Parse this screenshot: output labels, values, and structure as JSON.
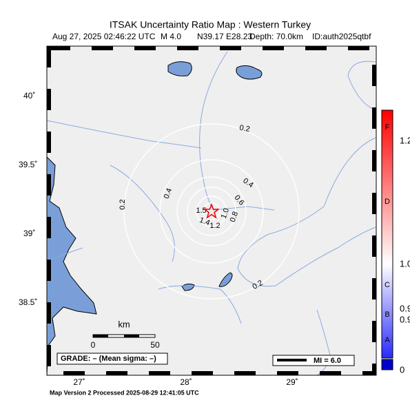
{
  "header": {
    "title": "ITSAK Uncertainty Ratio Map : Western Turkey",
    "event_time": "Aug 27, 2025 02:46:22 UTC",
    "magnitude": "M 4.0",
    "location": "N39.17 E28.23",
    "depth": "Depth: 70.0km",
    "event_id": "ID:auth2025qtbf"
  },
  "map": {
    "lat_labels": [
      "40˚",
      "39.5˚",
      "39˚",
      "38.5˚"
    ],
    "lon_labels": [
      "27˚",
      "28˚",
      "29˚"
    ],
    "contour_labels": [
      "0.2",
      "0.4",
      "0.6",
      "0.8",
      "1.0",
      "1.2",
      "1.4",
      "1.5",
      "0.4",
      "0.2",
      "0.2"
    ]
  },
  "colorbar": {
    "grades": [
      "F",
      "D",
      "C",
      "B",
      "A"
    ],
    "ticks": [
      "1.2",
      "1.0",
      "0.9",
      "0.9",
      "0"
    ]
  },
  "scale_bar": {
    "unit": "km",
    "labels": [
      "0",
      "50"
    ]
  },
  "grade_box": "GRADE: – (Mean sigma: –)",
  "mi_legend": "MI = 6.0",
  "footer": "Map Version 2 Processed 2025-08-29 12:41:05 UTC"
}
